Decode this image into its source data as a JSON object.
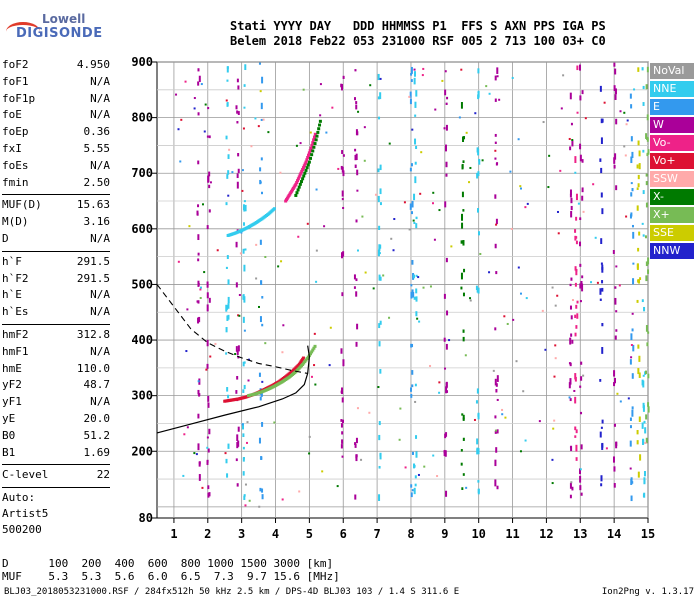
{
  "logo": {
    "line1": "Lowell",
    "line2": "DIGISONDE"
  },
  "header": {
    "line1": "Stati YYYY DAY   DDD HHMMSS P1  FFS S AXN PPS IGA PS",
    "line2": "Belem 2018 Feb22 053 231000 RSF 005 2 713 100 03+ C0"
  },
  "params": {
    "group1": [
      [
        "foF2",
        "4.950"
      ],
      [
        "foF1",
        "N/A"
      ],
      [
        "foF1p",
        "N/A"
      ],
      [
        "foE",
        "N/A"
      ],
      [
        "foEp",
        "0.36"
      ],
      [
        "fxI",
        "5.55"
      ],
      [
        "foEs",
        "N/A"
      ],
      [
        "fmin",
        "2.50"
      ]
    ],
    "group2": [
      [
        "MUF(D)",
        "15.63"
      ],
      [
        "M(D)",
        "3.16"
      ],
      [
        "D",
        "N/A"
      ]
    ],
    "group3": [
      [
        "h`F",
        "291.5"
      ],
      [
        "h`F2",
        "291.5"
      ],
      [
        "h`E",
        "N/A"
      ],
      [
        "h`Es",
        "N/A"
      ]
    ],
    "group4": [
      [
        "hmF2",
        "312.8"
      ],
      [
        "hmF1",
        "N/A"
      ],
      [
        "hmE",
        "110.0"
      ],
      [
        "yF2",
        "48.7"
      ],
      [
        "yF1",
        "N/A"
      ],
      [
        "yE",
        "20.0"
      ],
      [
        "B0",
        "51.2"
      ],
      [
        "B1",
        "1.69"
      ]
    ],
    "group5": [
      [
        "C-level",
        "22"
      ]
    ],
    "auto": [
      "Auto:",
      "Artist5",
      "500200"
    ]
  },
  "legend": [
    {
      "label": "NoVal",
      "color": "#9a9a9a"
    },
    {
      "label": "NNE",
      "color": "#33ccee"
    },
    {
      "label": "E",
      "color": "#3399ee"
    },
    {
      "label": "W",
      "color": "#aa0099"
    },
    {
      "label": "Vo-",
      "color": "#ee2288"
    },
    {
      "label": "Vo+",
      "color": "#dd1133"
    },
    {
      "label": "SSW",
      "color": "#ffaaaa"
    },
    {
      "label": "X-",
      "color": "#007a00"
    },
    {
      "label": "X+",
      "color": "#77bb55"
    },
    {
      "label": "SSE",
      "color": "#cccc00"
    },
    {
      "label": "NNW",
      "color": "#2222cc"
    }
  ],
  "footer": {
    "line1": "D      100  200  400  600  800 1000 1500 3000 [km]",
    "line2": "MUF    5.3  5.3  5.6  6.0  6.5  7.3  9.7 15.6 [MHz]",
    "bottom": "BLJ03_2018053231000.RSF / 284fx512h 50 kHz 2.5 km / DPS-4D BLJ03 103 / 1.4 S 311.6 E",
    "version": "Ion2Png v. 1.3.17"
  },
  "chart_data": {
    "type": "scatter",
    "xlim": [
      0.5,
      15
    ],
    "ylim": [
      80,
      900
    ],
    "x_ticks": [
      1,
      2,
      3,
      4,
      5,
      6,
      7,
      8,
      9,
      10,
      11,
      12,
      13,
      14,
      15
    ],
    "y_ticks": [
      80,
      200,
      300,
      400,
      500,
      600,
      700,
      800,
      900
    ],
    "series": [
      {
        "name": "Vo+",
        "color": "#dd1133",
        "x": [
          2.5,
          2.7,
          2.9,
          3.1,
          3.3,
          3.5,
          3.7,
          3.9,
          4.1,
          4.3,
          4.5,
          4.7,
          4.85
        ],
        "y": [
          290,
          292,
          294,
          297,
          301,
          306,
          312,
          318,
          325,
          334,
          344,
          356,
          370
        ]
      },
      {
        "name": "X+",
        "color": "#77bb55",
        "x": [
          3.2,
          3.4,
          3.6,
          3.8,
          4.0,
          4.2,
          4.4,
          4.6,
          4.8,
          5.0,
          5.2
        ],
        "y": [
          300,
          303,
          307,
          312,
          318,
          325,
          333,
          343,
          356,
          372,
          392
        ]
      },
      {
        "name": "Vo-",
        "color": "#ee2288",
        "x": [
          4.3,
          4.45,
          4.6,
          4.75,
          4.9,
          5.05,
          5.2
        ],
        "y": [
          650,
          665,
          680,
          700,
          720,
          745,
          775
        ]
      },
      {
        "name": "X-",
        "color": "#007a00",
        "x": [
          4.6,
          4.8,
          5.0,
          5.2,
          5.35
        ],
        "y": [
          660,
          690,
          720,
          760,
          800
        ]
      },
      {
        "name": "NNE",
        "color": "#33ccee",
        "x": [
          2.6,
          2.8,
          3.0,
          3.2,
          3.4,
          3.6,
          3.8,
          4.0
        ],
        "y": [
          588,
          592,
          597,
          603,
          610,
          618,
          627,
          638
        ]
      }
    ],
    "profile": {
      "x": [
        0.5,
        1.5,
        2.5,
        3.5,
        4.2,
        4.6,
        4.85,
        4.95,
        5.0,
        4.95
      ],
      "y": [
        233,
        249,
        265,
        280,
        294,
        305,
        320,
        340,
        370,
        390
      ]
    },
    "model": {
      "x": [
        0.5,
        1.0,
        1.5,
        2.0,
        2.5,
        3.0,
        3.5,
        4.0,
        4.5,
        4.95
      ],
      "y": [
        500,
        460,
        420,
        395,
        380,
        368,
        358,
        352,
        345,
        340
      ]
    }
  }
}
